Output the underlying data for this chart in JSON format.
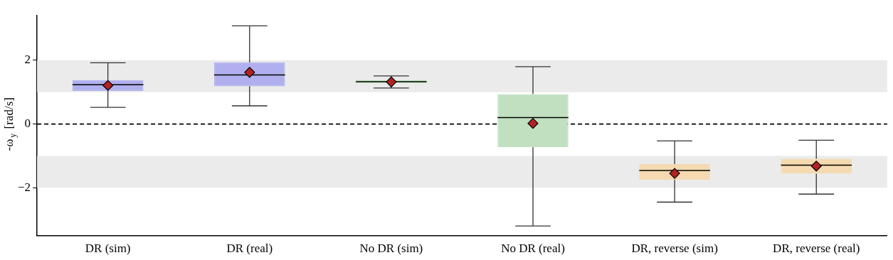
{
  "chart_data": {
    "type": "box",
    "ylabel": "-ω$_{y}$ [rad/s]",
    "categories": [
      "DR (sim)",
      "DR (real)",
      "No DR (sim)",
      "No DR (real)",
      "DR, reverse (sim)",
      "DR, reverse (real)"
    ],
    "colors": [
      "#b0b0ee",
      "#b0b0ee",
      "#c0e0c0",
      "#c0e0c0",
      "#f5d9b0",
      "#f5d9b0"
    ],
    "boxes": [
      {
        "low": 0.52,
        "q1": 1.04,
        "median": 1.23,
        "q3": 1.38,
        "high": 1.92,
        "mean": 1.21
      },
      {
        "low": 0.57,
        "q1": 1.18,
        "median": 1.54,
        "q3": 1.93,
        "high": 3.08,
        "mean": 1.62
      },
      {
        "low": 1.13,
        "q1": 1.28,
        "median": 1.33,
        "q3": 1.37,
        "high": 1.51,
        "mean": 1.32
      },
      {
        "low": -3.2,
        "q1": -0.73,
        "median": 0.2,
        "q3": 0.94,
        "high": 1.8,
        "mean": 0.02
      },
      {
        "low": -2.45,
        "q1": -1.75,
        "median": -1.46,
        "q3": -1.26,
        "high": -0.53,
        "mean": -1.55
      },
      {
        "low": -2.2,
        "q1": -1.56,
        "median": -1.29,
        "q3": -1.09,
        "high": -0.51,
        "mean": -1.32
      }
    ],
    "ylim": [
      -3.5,
      3.4
    ],
    "yticks": [
      -2,
      0,
      2
    ],
    "ref_lines": [
      {
        "axis": "y",
        "value": 0,
        "line_style": "dashed",
        "color": "#000000"
      }
    ],
    "bands": [
      {
        "axis": "y",
        "from": 1,
        "to": 2,
        "color": "#ebebeb"
      },
      {
        "axis": "y",
        "from": -2,
        "to": -1,
        "color": "#ebebeb"
      }
    ],
    "marker": "diamond",
    "grid": false,
    "legend": false
  }
}
